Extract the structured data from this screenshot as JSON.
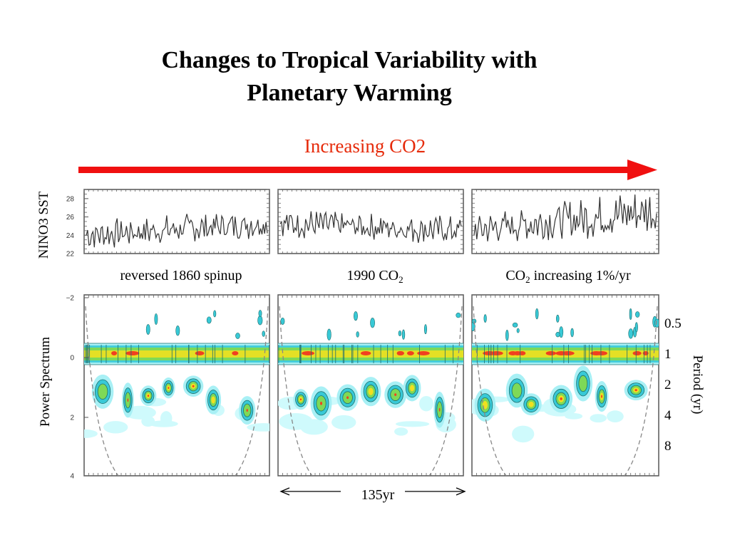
{
  "title_line1": "Changes to Tropical Variability with",
  "title_line2": "Planetary Warming",
  "arrow_label": "Increasing CO2",
  "colors": {
    "arrow": "#f01010",
    "arrow_label": "#e62a0a",
    "sst_line": "#333333"
  },
  "y_label_sst": "NINO3 SST",
  "y_label_power": "Power Spectrum",
  "y_label_period": "Period (yr)",
  "sst_ticks": [
    "28",
    "26",
    "24",
    "22"
  ],
  "power_ticks": [
    "−2",
    "0",
    "2",
    "4"
  ],
  "period_ticks": [
    "0.5",
    "1",
    "2",
    "4",
    "8"
  ],
  "panels": [
    {
      "title_pre": "reversed 1860 spinup",
      "sub": "",
      "title_post": ""
    },
    {
      "title_pre": "1990 CO",
      "sub": "2",
      "title_post": ""
    },
    {
      "title_pre": "CO",
      "sub": "2",
      "title_post": " increasing 1%/yr"
    }
  ],
  "span_label": "135yr",
  "chart_data": {
    "type": "line",
    "ylabel": "NINO3 SST",
    "ylim": [
      22,
      29
    ],
    "yticks": [
      22,
      24,
      26,
      28
    ],
    "series": [
      {
        "mean_start": 24.0,
        "mean_end": 25.3
      },
      {
        "mean_start": 25.3,
        "mean_end": 24.5
      },
      {
        "mean_start": 24.6,
        "mean_end": 26.7
      }
    ]
  }
}
